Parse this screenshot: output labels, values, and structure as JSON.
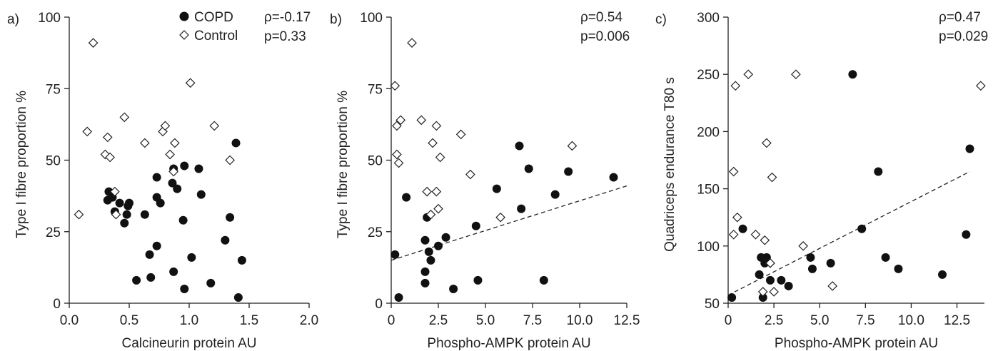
{
  "chart_data": [
    {
      "type": "scatter",
      "panel_label": "a)",
      "xlabel": "Calcineurin protein AU",
      "ylabel": "Type I fibre proportion %",
      "xlim": [
        0,
        2.0
      ],
      "ylim": [
        0,
        100
      ],
      "xticks": [
        "0.0",
        "0.5",
        "1.0",
        "1.5",
        "2.0"
      ],
      "yticks": [
        "0",
        "25",
        "50",
        "75",
        "100"
      ],
      "legend": {
        "placement": "top",
        "entries": [
          "COPD",
          "Control"
        ]
      },
      "stats": [
        "ρ=-0.17",
        "p=0.33"
      ],
      "series": [
        {
          "name": "COPD",
          "marker": "filled-circle",
          "points": [
            [
              0.32,
              36
            ],
            [
              0.33,
              39
            ],
            [
              0.36,
              37
            ],
            [
              0.38,
              32
            ],
            [
              0.42,
              35
            ],
            [
              0.46,
              28
            ],
            [
              0.48,
              31
            ],
            [
              0.49,
              34
            ],
            [
              0.5,
              35
            ],
            [
              0.56,
              8
            ],
            [
              0.63,
              31
            ],
            [
              0.67,
              17
            ],
            [
              0.68,
              9
            ],
            [
              0.73,
              20
            ],
            [
              0.73,
              44
            ],
            [
              0.73,
              37
            ],
            [
              0.76,
              35
            ],
            [
              0.86,
              42
            ],
            [
              0.87,
              47
            ],
            [
              0.87,
              11
            ],
            [
              0.9,
              40
            ],
            [
              0.95,
              29
            ],
            [
              0.96,
              48
            ],
            [
              0.96,
              5
            ],
            [
              1.02,
              16
            ],
            [
              1.08,
              47
            ],
            [
              1.1,
              38
            ],
            [
              1.18,
              7
            ],
            [
              1.3,
              22
            ],
            [
              1.34,
              30
            ],
            [
              1.39,
              56
            ],
            [
              1.41,
              2
            ],
            [
              1.44,
              15
            ]
          ]
        },
        {
          "name": "Control",
          "marker": "open-diamond",
          "points": [
            [
              0.08,
              31
            ],
            [
              0.15,
              60
            ],
            [
              0.2,
              91
            ],
            [
              0.3,
              52
            ],
            [
              0.32,
              58
            ],
            [
              0.34,
              51
            ],
            [
              0.38,
              39
            ],
            [
              0.39,
              31
            ],
            [
              0.46,
              65
            ],
            [
              0.63,
              56
            ],
            [
              0.78,
              60
            ],
            [
              0.8,
              62
            ],
            [
              0.84,
              52
            ],
            [
              0.87,
              46
            ],
            [
              0.88,
              56
            ],
            [
              1.01,
              77
            ],
            [
              1.21,
              62
            ],
            [
              1.34,
              50
            ]
          ]
        }
      ]
    },
    {
      "type": "scatter",
      "panel_label": "b)",
      "xlabel": "Phospho-AMPK protein AU",
      "ylabel": "Type I fibre proportion %",
      "xlim": [
        0,
        12.5
      ],
      "ylim": [
        0,
        100
      ],
      "xticks": [
        "0",
        "2.5",
        "5.0",
        "7.5",
        "10.0",
        "12.5"
      ],
      "yticks": [
        "0",
        "25",
        "50",
        "75",
        "100"
      ],
      "stats": [
        "ρ=0.54",
        "p=0.006"
      ],
      "fit_line": [
        [
          0,
          15
        ],
        [
          12.5,
          41
        ]
      ],
      "series": [
        {
          "name": "COPD",
          "marker": "filled-circle",
          "points": [
            [
              0.2,
              17
            ],
            [
              0.4,
              2
            ],
            [
              0.8,
              37
            ],
            [
              1.8,
              22
            ],
            [
              1.8,
              11
            ],
            [
              1.8,
              7
            ],
            [
              1.9,
              30
            ],
            [
              2.0,
              18
            ],
            [
              2.1,
              15
            ],
            [
              2.5,
              20
            ],
            [
              2.9,
              23
            ],
            [
              3.3,
              5
            ],
            [
              4.5,
              27
            ],
            [
              4.6,
              8
            ],
            [
              5.6,
              40
            ],
            [
              6.8,
              55
            ],
            [
              6.9,
              33
            ],
            [
              7.3,
              47
            ],
            [
              8.1,
              8
            ],
            [
              8.7,
              38
            ],
            [
              9.4,
              46
            ],
            [
              11.8,
              44
            ]
          ]
        },
        {
          "name": "Control",
          "marker": "open-diamond",
          "points": [
            [
              0.2,
              76
            ],
            [
              0.3,
              52
            ],
            [
              0.3,
              62
            ],
            [
              0.4,
              49
            ],
            [
              0.5,
              64
            ],
            [
              1.1,
              91
            ],
            [
              1.6,
              64
            ],
            [
              1.9,
              39
            ],
            [
              2.1,
              31
            ],
            [
              2.2,
              56
            ],
            [
              2.4,
              62
            ],
            [
              2.4,
              39
            ],
            [
              2.5,
              33
            ],
            [
              2.6,
              51
            ],
            [
              3.7,
              59
            ],
            [
              4.2,
              45
            ],
            [
              5.8,
              30
            ],
            [
              9.6,
              55
            ]
          ]
        }
      ]
    },
    {
      "type": "scatter",
      "panel_label": "c)",
      "xlabel": "Phospho-AMPK protein AU",
      "ylabel": "Quadriceps endurance T80 s",
      "xlim": [
        0,
        14
      ],
      "ylim": [
        50,
        300
      ],
      "xticks": [
        "0",
        "2.5",
        "5.0",
        "7.5",
        "10.0",
        "12.5"
      ],
      "xtick_values": [
        0,
        2.5,
        5.0,
        7.5,
        10.0,
        12.5
      ],
      "yticks": [
        "50",
        "100",
        "150",
        "200",
        "250",
        "300"
      ],
      "stats": [
        "ρ=0.47",
        "p=0.029"
      ],
      "fit_line": [
        [
          0,
          57
        ],
        [
          13.2,
          165
        ]
      ],
      "series": [
        {
          "name": "COPD",
          "marker": "filled-circle",
          "points": [
            [
              0.2,
              55
            ],
            [
              0.8,
              115
            ],
            [
              1.7,
              75
            ],
            [
              1.8,
              90
            ],
            [
              1.9,
              55
            ],
            [
              2.0,
              85
            ],
            [
              2.1,
              90
            ],
            [
              2.3,
              70
            ],
            [
              2.9,
              70
            ],
            [
              3.3,
              65
            ],
            [
              4.5,
              90
            ],
            [
              4.6,
              80
            ],
            [
              5.6,
              85
            ],
            [
              6.8,
              250
            ],
            [
              7.3,
              115
            ],
            [
              8.2,
              165
            ],
            [
              8.6,
              90
            ],
            [
              9.3,
              80
            ],
            [
              11.7,
              75
            ],
            [
              13.0,
              110
            ],
            [
              13.2,
              185
            ]
          ]
        },
        {
          "name": "Control",
          "marker": "open-diamond",
          "points": [
            [
              0.3,
              165
            ],
            [
              0.3,
              110
            ],
            [
              0.4,
              240
            ],
            [
              0.5,
              125
            ],
            [
              1.1,
              250
            ],
            [
              1.5,
              110
            ],
            [
              1.9,
              60
            ],
            [
              2.0,
              105
            ],
            [
              2.1,
              190
            ],
            [
              2.3,
              85
            ],
            [
              2.4,
              160
            ],
            [
              2.5,
              60
            ],
            [
              3.7,
              250
            ],
            [
              4.1,
              100
            ],
            [
              5.7,
              65
            ],
            [
              13.8,
              240
            ]
          ]
        }
      ]
    }
  ]
}
